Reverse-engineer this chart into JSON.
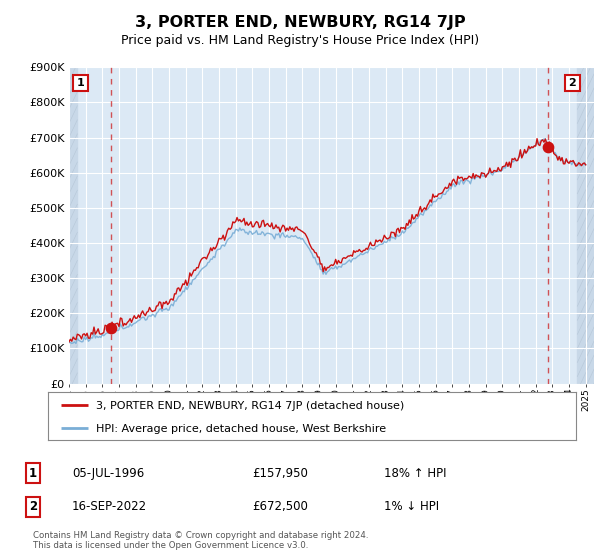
{
  "title": "3, PORTER END, NEWBURY, RG14 7JP",
  "subtitle": "Price paid vs. HM Land Registry's House Price Index (HPI)",
  "ylim": [
    0,
    900000
  ],
  "yticks": [
    0,
    100000,
    200000,
    300000,
    400000,
    500000,
    600000,
    700000,
    800000,
    900000
  ],
  "ytick_labels": [
    "£0",
    "£100K",
    "£200K",
    "£300K",
    "£400K",
    "£500K",
    "£600K",
    "£700K",
    "£800K",
    "£900K"
  ],
  "hpi_color": "#7aaed6",
  "price_color": "#cc1111",
  "sale1_year": 1996.54,
  "sale1_price": 157950,
  "sale2_year": 2022.71,
  "sale2_price": 672500,
  "annotation1_date": "05-JUL-1996",
  "annotation1_price_str": "£157,950",
  "annotation1_hpi_rel": "18% ↑ HPI",
  "annotation2_date": "16-SEP-2022",
  "annotation2_price_str": "£672,500",
  "annotation2_hpi_rel": "1% ↓ HPI",
  "legend_line1": "3, PORTER END, NEWBURY, RG14 7JP (detached house)",
  "legend_line2": "HPI: Average price, detached house, West Berkshire",
  "footer": "Contains HM Land Registry data © Crown copyright and database right 2024.\nThis data is licensed under the Open Government Licence v3.0.",
  "background_color": "#ffffff",
  "plot_bg_color": "#dce9f5",
  "grid_color": "#ffffff",
  "hatch_bg": "#c8d8e8"
}
